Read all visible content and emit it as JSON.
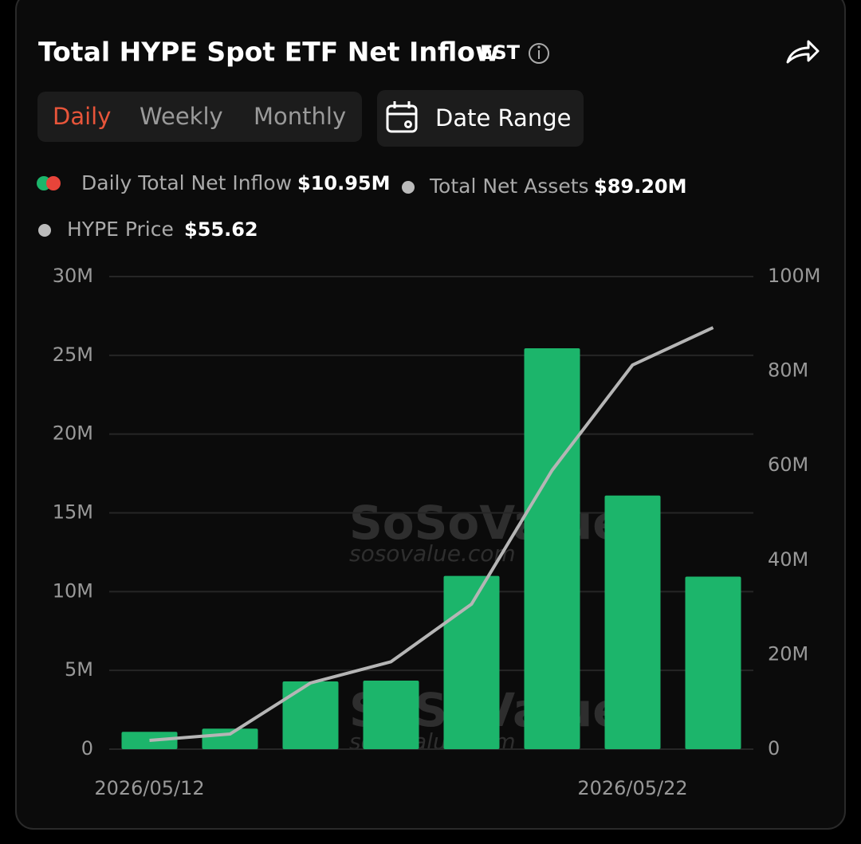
{
  "header": {
    "title": "Total HYPE Spot ETF Net Inflow",
    "timezone": "EST"
  },
  "tabs": [
    "Daily",
    "Weekly",
    "Monthly"
  ],
  "date_range": "Date Range",
  "legend_values": [
    "$10.95M",
    "$89.20M"
  ],
  "extra_legend": {
    "name": "HYPE Price",
    "value": "$55.62"
  },
  "watermark": {
    "brand": "SoSoValue",
    "url": "sosovalue.com"
  },
  "chart_data": {
    "type": "bar",
    "categories": [
      "2026/05/12",
      null,
      null,
      null,
      null,
      null,
      "2026/05/22",
      null
    ],
    "series": [
      {
        "name": "Daily Total Net Inflow",
        "color": "#1cb56b",
        "values": [
          1100000,
          1300000,
          4300000,
          4350000,
          11000000,
          25450000,
          16100000,
          10950000
        ]
      },
      {
        "name": "Total Net Assets",
        "color": "#b5b5b5",
        "axis": "y2",
        "values": [
          1850000,
          3200000,
          14000000,
          18500000,
          30700000,
          59000000,
          81300000,
          89200000
        ]
      }
    ],
    "ylim": [
      0,
      30000000
    ],
    "yticks": [
      {
        "value": 0,
        "label": "0"
      },
      {
        "value": 5000000,
        "label": "5M"
      },
      {
        "value": 10000000,
        "label": "10M"
      },
      {
        "value": 15000000,
        "label": "15M"
      },
      {
        "value": 20000000,
        "label": "20M"
      },
      {
        "value": 25000000,
        "label": "25M"
      },
      {
        "value": 30000000,
        "label": "30M"
      }
    ],
    "y2lim": [
      0,
      100000000
    ],
    "y2ticks": [
      {
        "value": 0,
        "label": "0"
      },
      {
        "value": 20000000,
        "label": "20M"
      },
      {
        "value": 40000000,
        "label": "40M"
      },
      {
        "value": 60000000,
        "label": "60M"
      },
      {
        "value": 80000000,
        "label": "80M"
      },
      {
        "value": 100000000,
        "label": "100M"
      }
    ],
    "grid": true
  }
}
